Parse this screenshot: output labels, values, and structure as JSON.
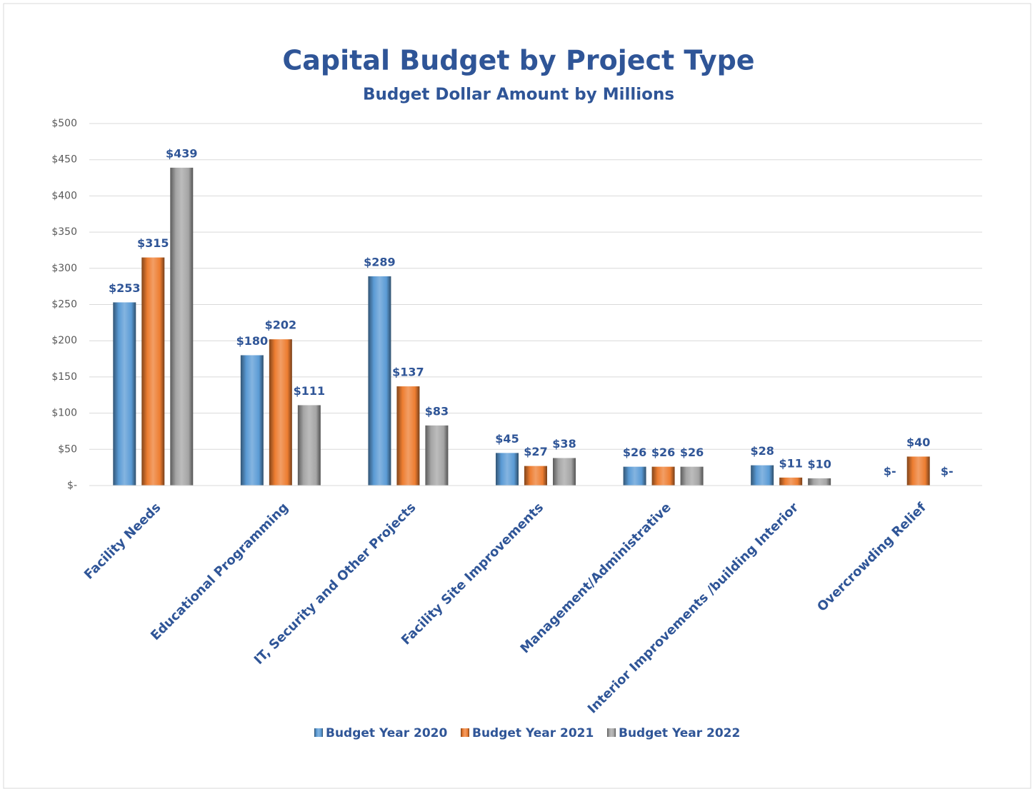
{
  "chart_data": {
    "type": "bar",
    "title": "Capital Budget by Project Type",
    "subtitle": "Budget Dollar Amount by Millions",
    "categories": [
      "Facility Needs",
      "Educational Programming",
      "IT, Security and Other Projects",
      "Facility Site Improvements",
      "Management/Administrative",
      "Interior Improvements /building Interior",
      "Overcrowding Relief"
    ],
    "series": [
      {
        "name": "Budget Year 2020",
        "color": "#5b9bd5",
        "values": [
          253,
          180,
          289,
          45,
          26,
          28,
          0
        ],
        "value_labels": [
          "$253",
          "$180",
          "$289",
          "$45",
          "$26",
          "$28",
          "$-"
        ]
      },
      {
        "name": "Budget Year 2021",
        "color": "#ed7d31",
        "values": [
          315,
          202,
          137,
          27,
          26,
          11,
          40
        ],
        "value_labels": [
          "$315",
          "$202",
          "$137",
          "$27",
          "$26",
          "$11",
          "$40"
        ]
      },
      {
        "name": "Budget Year 2022",
        "color": "#a5a5a5",
        "values": [
          439,
          111,
          83,
          38,
          26,
          10,
          0
        ],
        "value_labels": [
          "$439",
          "$111",
          "$83",
          "$38",
          "$26",
          "$10",
          "$-"
        ]
      }
    ],
    "ylim": [
      0,
      500
    ],
    "yticks": [
      {
        "value": 0,
        "label": "$-"
      },
      {
        "value": 50,
        "label": "$50"
      },
      {
        "value": 100,
        "label": "$100"
      },
      {
        "value": 150,
        "label": "$150"
      },
      {
        "value": 200,
        "label": "$200"
      },
      {
        "value": 250,
        "label": "$250"
      },
      {
        "value": 300,
        "label": "$300"
      },
      {
        "value": 350,
        "label": "$350"
      },
      {
        "value": 400,
        "label": "$400"
      },
      {
        "value": 450,
        "label": "$450"
      },
      {
        "value": 500,
        "label": "$500"
      }
    ],
    "grid": true,
    "legend": "bottom"
  }
}
